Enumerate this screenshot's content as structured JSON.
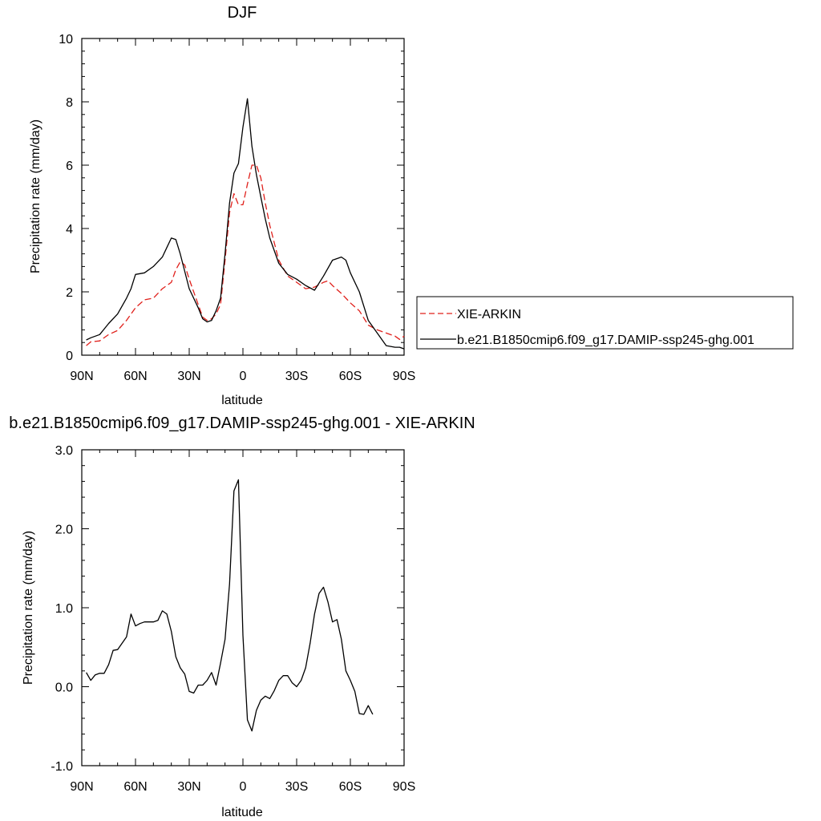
{
  "chart_data": [
    {
      "type": "line",
      "title": "DJF",
      "xlabel": "latitude",
      "ylabel": "Precipitation rate (mm/day)",
      "xlim": [
        90,
        -90
      ],
      "ylim": [
        0,
        10
      ],
      "xticks": [
        {
          "value": 90,
          "label": "90N"
        },
        {
          "value": 60,
          "label": "60N"
        },
        {
          "value": 30,
          "label": "30N"
        },
        {
          "value": 0,
          "label": "0"
        },
        {
          "value": -30,
          "label": "30S"
        },
        {
          "value": -60,
          "label": "60S"
        },
        {
          "value": -90,
          "label": "90S"
        }
      ],
      "yticks": [
        {
          "value": 0,
          "label": "0"
        },
        {
          "value": 2,
          "label": "2"
        },
        {
          "value": 4,
          "label": "4"
        },
        {
          "value": 6,
          "label": "6"
        },
        {
          "value": 8,
          "label": "8"
        },
        {
          "value": 10,
          "label": "10"
        }
      ],
      "legend_position": "right",
      "series": [
        {
          "name": "XIE-ARKIN",
          "color": "#e0201b",
          "dash": "dashed",
          "points": [
            [
              87.5,
              0.3
            ],
            [
              85,
              0.42
            ],
            [
              80,
              0.45
            ],
            [
              75,
              0.65
            ],
            [
              70,
              0.78
            ],
            [
              65,
              1.1
            ],
            [
              60,
              1.5
            ],
            [
              55,
              1.75
            ],
            [
              50,
              1.8
            ],
            [
              45,
              2.1
            ],
            [
              40,
              2.3
            ],
            [
              37.5,
              2.7
            ],
            [
              35,
              2.95
            ],
            [
              32.5,
              2.85
            ],
            [
              30,
              2.4
            ],
            [
              25,
              1.6
            ],
            [
              22.5,
              1.2
            ],
            [
              20,
              1.1
            ],
            [
              17.5,
              1.15
            ],
            [
              15,
              1.3
            ],
            [
              12.5,
              1.6
            ],
            [
              10,
              3.0
            ],
            [
              7.5,
              4.5
            ],
            [
              5,
              5.1
            ],
            [
              2.5,
              4.75
            ],
            [
              0,
              4.75
            ],
            [
              -2.5,
              5.4
            ],
            [
              -5,
              6.0
            ],
            [
              -7.5,
              6.0
            ],
            [
              -10,
              5.6
            ],
            [
              -12.5,
              4.8
            ],
            [
              -15,
              4.1
            ],
            [
              -20,
              3.0
            ],
            [
              -25,
              2.5
            ],
            [
              -30,
              2.3
            ],
            [
              -35,
              2.1
            ],
            [
              -40,
              2.15
            ],
            [
              -45,
              2.3
            ],
            [
              -47.5,
              2.35
            ],
            [
              -50,
              2.2
            ],
            [
              -55,
              1.95
            ],
            [
              -60,
              1.65
            ],
            [
              -65,
              1.4
            ],
            [
              -70,
              0.95
            ],
            [
              -75,
              0.8
            ],
            [
              -80,
              0.7
            ],
            [
              -85,
              0.6
            ],
            [
              -87.5,
              0.5
            ],
            [
              -90,
              0.6
            ]
          ]
        },
        {
          "name": "b.e21.B1850cmip6.f09_g17.DAMIP-ssp245-ghg.001",
          "color": "#000000",
          "dash": "solid",
          "points": [
            [
              87.5,
              0.48
            ],
            [
              85,
              0.55
            ],
            [
              80,
              0.65
            ],
            [
              75,
              1.0
            ],
            [
              70,
              1.3
            ],
            [
              65,
              1.8
            ],
            [
              62.5,
              2.1
            ],
            [
              60,
              2.55
            ],
            [
              55,
              2.6
            ],
            [
              50,
              2.8
            ],
            [
              45,
              3.1
            ],
            [
              42.5,
              3.4
            ],
            [
              40,
              3.7
            ],
            [
              37.5,
              3.65
            ],
            [
              35,
              3.2
            ],
            [
              30,
              2.1
            ],
            [
              25,
              1.5
            ],
            [
              22.5,
              1.15
            ],
            [
              20,
              1.05
            ],
            [
              17.5,
              1.1
            ],
            [
              15,
              1.4
            ],
            [
              12.5,
              1.8
            ],
            [
              10,
              3.2
            ],
            [
              7.5,
              4.8
            ],
            [
              5,
              5.75
            ],
            [
              2.5,
              6.05
            ],
            [
              0,
              7.2
            ],
            [
              -2.5,
              8.1
            ],
            [
              -5,
              6.6
            ],
            [
              -7.5,
              5.7
            ],
            [
              -10,
              5.0
            ],
            [
              -12.5,
              4.3
            ],
            [
              -15,
              3.7
            ],
            [
              -20,
              2.9
            ],
            [
              -25,
              2.55
            ],
            [
              -30,
              2.4
            ],
            [
              -35,
              2.2
            ],
            [
              -40,
              2.05
            ],
            [
              -45,
              2.5
            ],
            [
              -50,
              3.0
            ],
            [
              -55,
              3.1
            ],
            [
              -57.5,
              3.0
            ],
            [
              -60,
              2.6
            ],
            [
              -65,
              2.0
            ],
            [
              -70,
              1.1
            ],
            [
              -75,
              0.7
            ],
            [
              -80,
              0.3
            ],
            [
              -85,
              0.25
            ],
            [
              -87.5,
              0.25
            ],
            [
              -90,
              0.2
            ]
          ]
        }
      ]
    },
    {
      "type": "line",
      "title": "b.e21.B1850cmip6.f09_g17.DAMIP-ssp245-ghg.001 - XIE-ARKIN",
      "xlabel": "latitude",
      "ylabel": "Precipitation rate (mm/day)",
      "xlim": [
        90,
        -90
      ],
      "ylim": [
        -1,
        3
      ],
      "xticks": [
        {
          "value": 90,
          "label": "90N"
        },
        {
          "value": 60,
          "label": "60N"
        },
        {
          "value": 30,
          "label": "30N"
        },
        {
          "value": 0,
          "label": "0"
        },
        {
          "value": -30,
          "label": "30S"
        },
        {
          "value": -60,
          "label": "60S"
        },
        {
          "value": -90,
          "label": "90S"
        }
      ],
      "yticks": [
        {
          "value": -1,
          "label": "-1.0"
        },
        {
          "value": 0,
          "label": "0.0"
        },
        {
          "value": 1,
          "label": "1.0"
        },
        {
          "value": 2,
          "label": "2.0"
        },
        {
          "value": 3,
          "label": "3.0"
        }
      ],
      "series": [
        {
          "color": "#000000",
          "dash": "solid",
          "points": [
            [
              87.5,
              0.18
            ],
            [
              85,
              0.08
            ],
            [
              82.5,
              0.15
            ],
            [
              80,
              0.17
            ],
            [
              77.5,
              0.17
            ],
            [
              75,
              0.28
            ],
            [
              72.5,
              0.46
            ],
            [
              70,
              0.47
            ],
            [
              65,
              0.63
            ],
            [
              62.5,
              0.92
            ],
            [
              60,
              0.77
            ],
            [
              57.5,
              0.8
            ],
            [
              55,
              0.82
            ],
            [
              50,
              0.82
            ],
            [
              47.5,
              0.84
            ],
            [
              45,
              0.96
            ],
            [
              42.5,
              0.92
            ],
            [
              40,
              0.7
            ],
            [
              37.5,
              0.38
            ],
            [
              35,
              0.24
            ],
            [
              32.5,
              0.16
            ],
            [
              30,
              -0.06
            ],
            [
              27.5,
              -0.08
            ],
            [
              25,
              0.02
            ],
            [
              22.5,
              0.02
            ],
            [
              20,
              0.08
            ],
            [
              17.5,
              0.18
            ],
            [
              15,
              0.02
            ],
            [
              12.5,
              0.3
            ],
            [
              10,
              0.6
            ],
            [
              7.5,
              1.3
            ],
            [
              5,
              2.48
            ],
            [
              2.5,
              2.62
            ],
            [
              0,
              0.65
            ],
            [
              -2.5,
              -0.42
            ],
            [
              -5,
              -0.56
            ],
            [
              -7.5,
              -0.3
            ],
            [
              -10,
              -0.17
            ],
            [
              -12.5,
              -0.12
            ],
            [
              -15,
              -0.15
            ],
            [
              -17.5,
              -0.05
            ],
            [
              -20,
              0.08
            ],
            [
              -22.5,
              0.14
            ],
            [
              -25,
              0.14
            ],
            [
              -27.5,
              0.05
            ],
            [
              -30,
              0.0
            ],
            [
              -32.5,
              0.08
            ],
            [
              -35,
              0.24
            ],
            [
              -37.5,
              0.55
            ],
            [
              -40,
              0.92
            ],
            [
              -42.5,
              1.18
            ],
            [
              -45,
              1.26
            ],
            [
              -47.5,
              1.07
            ],
            [
              -50,
              0.82
            ],
            [
              -52.5,
              0.85
            ],
            [
              -55,
              0.6
            ],
            [
              -57.5,
              0.2
            ],
            [
              -60,
              0.08
            ],
            [
              -62.5,
              -0.06
            ],
            [
              -65,
              -0.34
            ],
            [
              -67.5,
              -0.35
            ],
            [
              -70,
              -0.24
            ],
            [
              -72.5,
              -0.35
            ]
          ]
        }
      ]
    }
  ]
}
